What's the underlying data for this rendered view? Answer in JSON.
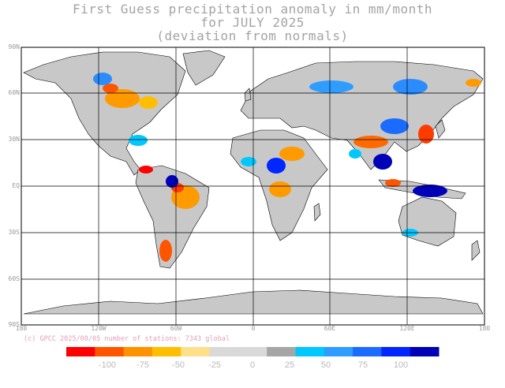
{
  "title": {
    "line1": "First Guess precipitation anomaly in mm/month",
    "line2": "for JULY 2025",
    "line3": "(deviation from normals)"
  },
  "footer": "(c) GPCC 2025/08/05 number of stations: 7343 global",
  "axes": {
    "lat_labels": [
      "90N",
      "60N",
      "30N",
      "EQ",
      "30S",
      "60S",
      "90S"
    ],
    "lon_labels": [
      "180",
      "120W",
      "60W",
      "0",
      "60E",
      "120E",
      "180"
    ]
  },
  "legend": {
    "labels": [
      "-100",
      "-75",
      "-50",
      "-25",
      "0",
      "25",
      "50",
      "75",
      "100"
    ],
    "colors": [
      "#ff0000",
      "#ff5500",
      "#ff9200",
      "#ffbf00",
      "#ffe08a",
      "#d9d9d9",
      "#d9d9d9",
      "#a6a6a6",
      "#00c8ff",
      "#2f9dff",
      "#1c6bff",
      "#0027ff",
      "#0000b8"
    ]
  },
  "colors": {
    "land_normal": "#c8c8c8",
    "land_dry": "#ff9a00",
    "land_wet": "#2a8cff",
    "grid": "#000000"
  }
}
